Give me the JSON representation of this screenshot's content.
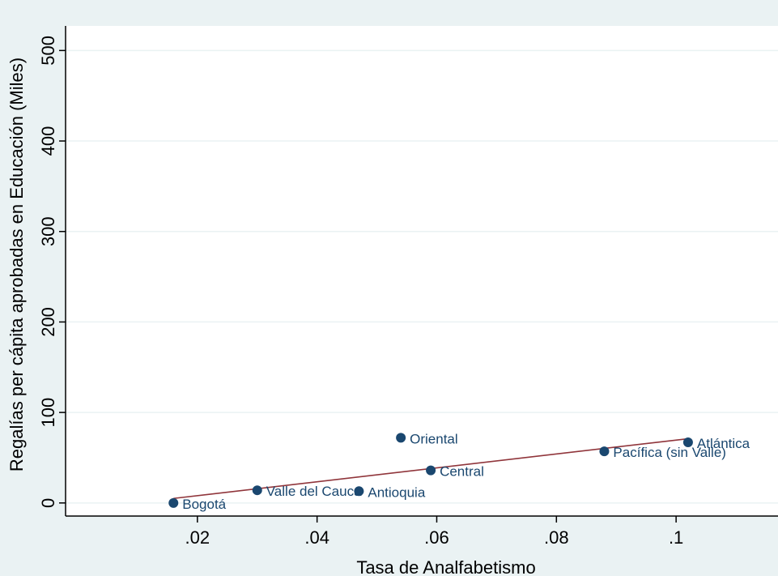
{
  "chart_data": {
    "type": "scatter",
    "xlabel": "Tasa de Analfabetismo",
    "ylabel": "Regalías per cápita aprobadas en Educación (Miles)",
    "xlim": [
      0,
      0.115
    ],
    "ylim": [
      -10,
      520
    ],
    "x_ticks": [
      0.02,
      0.04,
      0.06,
      0.08,
      0.1
    ],
    "x_tick_labels": [
      ".02",
      ".04",
      ".06",
      ".08",
      ".1"
    ],
    "y_ticks": [
      0,
      100,
      200,
      300,
      400,
      500
    ],
    "y_tick_labels": [
      "0",
      "100",
      "200",
      "300",
      "400",
      "500"
    ],
    "grid": "horizontal",
    "series": [
      {
        "type": "scatter",
        "points": [
          {
            "label": "Bogotá",
            "x": 0.016,
            "y": 0
          },
          {
            "label": "Valle del Cauca",
            "x": 0.03,
            "y": 14
          },
          {
            "label": "Antioquia",
            "x": 0.047,
            "y": 13
          },
          {
            "label": "Oriental",
            "x": 0.054,
            "y": 72
          },
          {
            "label": "Central",
            "x": 0.059,
            "y": 36
          },
          {
            "label": "Pacífica (sin Valle)",
            "x": 0.088,
            "y": 57
          },
          {
            "label": "Atlántica",
            "x": 0.102,
            "y": 67
          }
        ]
      },
      {
        "type": "line",
        "points": [
          {
            "x": 0.016,
            "y": 5
          },
          {
            "x": 0.102,
            "y": 71
          }
        ]
      }
    ],
    "colors": {
      "outer_background": "#eaf2f3",
      "plot_background": "#ffffff",
      "grid": "#eaf2f3",
      "marker": "#1a476f",
      "label": "#1a476f",
      "fit_line": "#90353b"
    }
  }
}
